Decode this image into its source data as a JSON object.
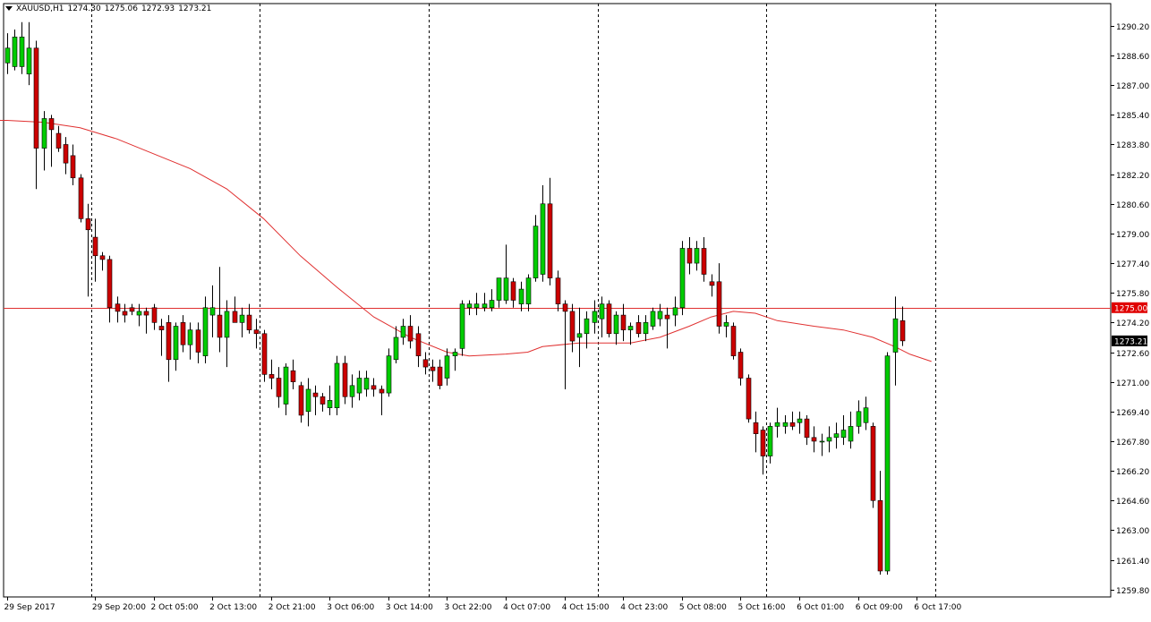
{
  "header": {
    "symbol": "XAUUSD,H1",
    "open": "1274.30",
    "high": "1275.06",
    "low": "1272.93",
    "close": "1273.21"
  },
  "colors": {
    "background": "#ffffff",
    "bull_candle": "#00cc00",
    "bear_candle": "#cc0000",
    "wick": "#000000",
    "moving_average": "#e03030",
    "horizontal_line": "#e03030",
    "price_badge_line": "#e00000",
    "price_badge_current": "#000000",
    "separator": "#000000"
  },
  "chart_data": {
    "type": "candlestick",
    "title": "XAUUSD,H1",
    "ylim": [
      1259.4,
      1291.4
    ],
    "y_ticks": [
      "1290.20",
      "1288.60",
      "1287.00",
      "1285.40",
      "1283.80",
      "1282.20",
      "1280.60",
      "1279.00",
      "1277.40",
      "1275.80",
      "1274.20",
      "1272.60",
      "1271.00",
      "1269.40",
      "1267.80",
      "1266.20",
      "1264.60",
      "1263.00",
      "1261.40",
      "1259.80"
    ],
    "x_ticks": [
      {
        "index": 0,
        "label": "29 Sep 2017"
      },
      {
        "index": 12,
        "label": "29 Sep 20:00"
      },
      {
        "index": 20,
        "label": "2 Oct 05:00"
      },
      {
        "index": 28,
        "label": "2 Oct 13:00"
      },
      {
        "index": 36,
        "label": "2 Oct 21:00"
      },
      {
        "index": 44,
        "label": "3 Oct 06:00"
      },
      {
        "index": 52,
        "label": "3 Oct 14:00"
      },
      {
        "index": 60,
        "label": "3 Oct 22:00"
      },
      {
        "index": 68,
        "label": "4 Oct 07:00"
      },
      {
        "index": 76,
        "label": "4 Oct 15:00"
      },
      {
        "index": 84,
        "label": "4 Oct 23:00"
      },
      {
        "index": 92,
        "label": "5 Oct 08:00"
      },
      {
        "index": 100,
        "label": "5 Oct 16:00"
      },
      {
        "index": 108,
        "label": "6 Oct 01:00"
      },
      {
        "index": 116,
        "label": "6 Oct 09:00"
      },
      {
        "index": 124,
        "label": "6 Oct 17:00"
      }
    ],
    "day_separators": [
      12,
      35,
      58,
      81,
      104,
      127
    ],
    "horizontal_line": {
      "value": 1275.0,
      "label": "1275.00"
    },
    "current_price": {
      "value": 1273.21,
      "label": "1273.21"
    },
    "candles": [
      {
        "o": 1288.2,
        "h": 1289.8,
        "l": 1287.6,
        "c": 1289.0
      },
      {
        "o": 1288.0,
        "h": 1290.0,
        "l": 1287.8,
        "c": 1289.6
      },
      {
        "o": 1288.0,
        "h": 1290.4,
        "l": 1287.6,
        "c": 1289.6
      },
      {
        "o": 1287.6,
        "h": 1290.4,
        "l": 1287.0,
        "c": 1289.0
      },
      {
        "o": 1289.0,
        "h": 1289.4,
        "l": 1281.4,
        "c": 1283.6
      },
      {
        "o": 1283.6,
        "h": 1285.6,
        "l": 1282.4,
        "c": 1285.2
      },
      {
        "o": 1285.2,
        "h": 1285.4,
        "l": 1282.6,
        "c": 1284.6
      },
      {
        "o": 1284.4,
        "h": 1284.8,
        "l": 1283.4,
        "c": 1283.6
      },
      {
        "o": 1283.8,
        "h": 1284.2,
        "l": 1282.2,
        "c": 1282.8
      },
      {
        "o": 1283.2,
        "h": 1283.8,
        "l": 1281.6,
        "c": 1282.0
      },
      {
        "o": 1282.0,
        "h": 1282.2,
        "l": 1279.6,
        "c": 1279.8
      },
      {
        "o": 1279.8,
        "h": 1280.6,
        "l": 1275.6,
        "c": 1279.2
      },
      {
        "o": 1278.8,
        "h": 1279.8,
        "l": 1276.4,
        "c": 1277.8
      },
      {
        "o": 1277.8,
        "h": 1278.0,
        "l": 1277.0,
        "c": 1277.6
      },
      {
        "o": 1277.6,
        "h": 1277.8,
        "l": 1274.2,
        "c": 1275.0
      },
      {
        "o": 1275.2,
        "h": 1275.6,
        "l": 1274.2,
        "c": 1274.8
      },
      {
        "o": 1274.8,
        "h": 1275.2,
        "l": 1274.2,
        "c": 1274.6
      },
      {
        "o": 1275.0,
        "h": 1275.2,
        "l": 1274.6,
        "c": 1274.8
      },
      {
        "o": 1274.6,
        "h": 1275.2,
        "l": 1274.0,
        "c": 1274.8
      },
      {
        "o": 1274.8,
        "h": 1275.0,
        "l": 1273.6,
        "c": 1274.6
      },
      {
        "o": 1275.0,
        "h": 1275.2,
        "l": 1273.8,
        "c": 1274.2
      },
      {
        "o": 1274.0,
        "h": 1274.4,
        "l": 1272.4,
        "c": 1273.8
      },
      {
        "o": 1274.2,
        "h": 1274.6,
        "l": 1271.0,
        "c": 1272.2
      },
      {
        "o": 1272.2,
        "h": 1274.2,
        "l": 1271.6,
        "c": 1274.0
      },
      {
        "o": 1274.2,
        "h": 1274.6,
        "l": 1272.6,
        "c": 1273.0
      },
      {
        "o": 1273.0,
        "h": 1274.2,
        "l": 1272.2,
        "c": 1273.8
      },
      {
        "o": 1273.8,
        "h": 1274.2,
        "l": 1272.0,
        "c": 1272.6
      },
      {
        "o": 1272.4,
        "h": 1275.6,
        "l": 1272.0,
        "c": 1275.0
      },
      {
        "o": 1274.6,
        "h": 1276.2,
        "l": 1273.4,
        "c": 1275.0
      },
      {
        "o": 1274.6,
        "h": 1277.2,
        "l": 1272.6,
        "c": 1273.4
      },
      {
        "o": 1273.4,
        "h": 1275.4,
        "l": 1271.8,
        "c": 1274.8
      },
      {
        "o": 1274.8,
        "h": 1275.6,
        "l": 1274.2,
        "c": 1274.2
      },
      {
        "o": 1274.2,
        "h": 1275.0,
        "l": 1273.4,
        "c": 1274.6
      },
      {
        "o": 1274.6,
        "h": 1275.2,
        "l": 1273.6,
        "c": 1273.8
      },
      {
        "o": 1273.8,
        "h": 1274.4,
        "l": 1272.8,
        "c": 1273.6
      },
      {
        "o": 1273.6,
        "h": 1273.8,
        "l": 1271.0,
        "c": 1271.4
      },
      {
        "o": 1271.4,
        "h": 1272.2,
        "l": 1270.6,
        "c": 1271.2
      },
      {
        "o": 1271.2,
        "h": 1271.8,
        "l": 1269.6,
        "c": 1270.2
      },
      {
        "o": 1269.8,
        "h": 1272.0,
        "l": 1269.2,
        "c": 1271.8
      },
      {
        "o": 1271.6,
        "h": 1272.2,
        "l": 1270.6,
        "c": 1271.0
      },
      {
        "o": 1270.8,
        "h": 1271.0,
        "l": 1268.8,
        "c": 1269.2
      },
      {
        "o": 1269.4,
        "h": 1271.2,
        "l": 1268.6,
        "c": 1270.6
      },
      {
        "o": 1270.4,
        "h": 1270.8,
        "l": 1269.2,
        "c": 1270.2
      },
      {
        "o": 1270.2,
        "h": 1270.4,
        "l": 1269.4,
        "c": 1269.8
      },
      {
        "o": 1269.6,
        "h": 1270.8,
        "l": 1269.2,
        "c": 1270.0
      },
      {
        "o": 1269.6,
        "h": 1272.4,
        "l": 1269.2,
        "c": 1272.0
      },
      {
        "o": 1272.0,
        "h": 1272.4,
        "l": 1269.8,
        "c": 1270.2
      },
      {
        "o": 1270.2,
        "h": 1271.4,
        "l": 1269.6,
        "c": 1270.8
      },
      {
        "o": 1270.4,
        "h": 1271.6,
        "l": 1270.0,
        "c": 1271.2
      },
      {
        "o": 1270.6,
        "h": 1271.6,
        "l": 1270.2,
        "c": 1271.2
      },
      {
        "o": 1270.8,
        "h": 1271.2,
        "l": 1270.2,
        "c": 1270.6
      },
      {
        "o": 1270.6,
        "h": 1270.8,
        "l": 1269.2,
        "c": 1270.4
      },
      {
        "o": 1270.4,
        "h": 1272.8,
        "l": 1270.2,
        "c": 1272.4
      },
      {
        "o": 1272.2,
        "h": 1274.0,
        "l": 1272.0,
        "c": 1273.4
      },
      {
        "o": 1273.4,
        "h": 1274.4,
        "l": 1273.0,
        "c": 1274.0
      },
      {
        "o": 1274.0,
        "h": 1274.6,
        "l": 1272.8,
        "c": 1273.2
      },
      {
        "o": 1273.6,
        "h": 1274.0,
        "l": 1271.8,
        "c": 1272.4
      },
      {
        "o": 1272.2,
        "h": 1272.6,
        "l": 1271.4,
        "c": 1271.8
      },
      {
        "o": 1271.8,
        "h": 1272.2,
        "l": 1271.0,
        "c": 1271.6
      },
      {
        "o": 1271.8,
        "h": 1272.2,
        "l": 1270.6,
        "c": 1270.8
      },
      {
        "o": 1271.2,
        "h": 1272.8,
        "l": 1270.8,
        "c": 1272.4
      },
      {
        "o": 1272.4,
        "h": 1272.8,
        "l": 1271.6,
        "c": 1272.6
      },
      {
        "o": 1272.8,
        "h": 1275.4,
        "l": 1272.4,
        "c": 1275.2
      },
      {
        "o": 1275.0,
        "h": 1275.4,
        "l": 1274.6,
        "c": 1275.2
      },
      {
        "o": 1275.0,
        "h": 1275.8,
        "l": 1274.6,
        "c": 1275.2
      },
      {
        "o": 1275.0,
        "h": 1275.8,
        "l": 1274.8,
        "c": 1275.2
      },
      {
        "o": 1275.0,
        "h": 1276.0,
        "l": 1274.8,
        "c": 1275.4
      },
      {
        "o": 1275.4,
        "h": 1276.6,
        "l": 1275.0,
        "c": 1276.6
      },
      {
        "o": 1275.4,
        "h": 1278.4,
        "l": 1275.2,
        "c": 1276.6
      },
      {
        "o": 1276.4,
        "h": 1276.6,
        "l": 1275.0,
        "c": 1275.4
      },
      {
        "o": 1275.2,
        "h": 1276.4,
        "l": 1274.8,
        "c": 1276.0
      },
      {
        "o": 1275.2,
        "h": 1276.8,
        "l": 1274.8,
        "c": 1276.6
      },
      {
        "o": 1276.6,
        "h": 1280.0,
        "l": 1276.4,
        "c": 1279.4
      },
      {
        "o": 1276.8,
        "h": 1281.6,
        "l": 1276.4,
        "c": 1280.6
      },
      {
        "o": 1280.6,
        "h": 1282.0,
        "l": 1276.2,
        "c": 1276.6
      },
      {
        "o": 1276.6,
        "h": 1277.0,
        "l": 1274.8,
        "c": 1275.2
      },
      {
        "o": 1275.2,
        "h": 1275.4,
        "l": 1270.6,
        "c": 1274.8
      },
      {
        "o": 1274.8,
        "h": 1275.2,
        "l": 1272.6,
        "c": 1273.2
      },
      {
        "o": 1273.4,
        "h": 1275.0,
        "l": 1271.8,
        "c": 1273.6
      },
      {
        "o": 1273.6,
        "h": 1274.8,
        "l": 1272.8,
        "c": 1274.4
      },
      {
        "o": 1274.2,
        "h": 1275.4,
        "l": 1273.6,
        "c": 1274.8
      },
      {
        "o": 1274.4,
        "h": 1275.6,
        "l": 1273.4,
        "c": 1275.2
      },
      {
        "o": 1275.2,
        "h": 1275.4,
        "l": 1273.4,
        "c": 1273.6
      },
      {
        "o": 1273.6,
        "h": 1274.8,
        "l": 1273.0,
        "c": 1274.6
      },
      {
        "o": 1274.6,
        "h": 1275.2,
        "l": 1273.2,
        "c": 1273.8
      },
      {
        "o": 1273.8,
        "h": 1274.2,
        "l": 1273.0,
        "c": 1274.0
      },
      {
        "o": 1274.2,
        "h": 1274.6,
        "l": 1273.4,
        "c": 1273.6
      },
      {
        "o": 1273.6,
        "h": 1274.6,
        "l": 1273.2,
        "c": 1274.2
      },
      {
        "o": 1274.0,
        "h": 1275.0,
        "l": 1273.8,
        "c": 1274.8
      },
      {
        "o": 1274.4,
        "h": 1275.2,
        "l": 1274.0,
        "c": 1274.8
      },
      {
        "o": 1274.6,
        "h": 1275.0,
        "l": 1272.8,
        "c": 1274.4
      },
      {
        "o": 1274.6,
        "h": 1275.6,
        "l": 1274.0,
        "c": 1275.0
      },
      {
        "o": 1275.0,
        "h": 1278.6,
        "l": 1274.6,
        "c": 1278.2
      },
      {
        "o": 1278.2,
        "h": 1278.8,
        "l": 1276.8,
        "c": 1277.4
      },
      {
        "o": 1277.4,
        "h": 1278.6,
        "l": 1277.0,
        "c": 1278.2
      },
      {
        "o": 1278.2,
        "h": 1278.8,
        "l": 1276.4,
        "c": 1276.8
      },
      {
        "o": 1276.4,
        "h": 1276.8,
        "l": 1275.6,
        "c": 1276.2
      },
      {
        "o": 1276.4,
        "h": 1277.4,
        "l": 1273.6,
        "c": 1274.0
      },
      {
        "o": 1274.0,
        "h": 1274.6,
        "l": 1273.4,
        "c": 1274.2
      },
      {
        "o": 1274.0,
        "h": 1274.2,
        "l": 1272.2,
        "c": 1272.4
      },
      {
        "o": 1272.6,
        "h": 1272.8,
        "l": 1270.8,
        "c": 1271.2
      },
      {
        "o": 1271.2,
        "h": 1271.4,
        "l": 1268.8,
        "c": 1269.0
      },
      {
        "o": 1268.8,
        "h": 1269.4,
        "l": 1267.2,
        "c": 1268.2
      },
      {
        "o": 1268.4,
        "h": 1268.6,
        "l": 1266.0,
        "c": 1267.0
      },
      {
        "o": 1267.0,
        "h": 1268.8,
        "l": 1266.6,
        "c": 1268.6
      },
      {
        "o": 1268.6,
        "h": 1269.6,
        "l": 1268.0,
        "c": 1268.8
      },
      {
        "o": 1268.6,
        "h": 1269.2,
        "l": 1268.2,
        "c": 1268.8
      },
      {
        "o": 1268.8,
        "h": 1269.4,
        "l": 1268.4,
        "c": 1268.6
      },
      {
        "o": 1268.8,
        "h": 1269.4,
        "l": 1268.2,
        "c": 1269.0
      },
      {
        "o": 1269.0,
        "h": 1269.2,
        "l": 1267.6,
        "c": 1268.0
      },
      {
        "o": 1268.0,
        "h": 1268.6,
        "l": 1267.2,
        "c": 1267.8
      },
      {
        "o": 1267.8,
        "h": 1268.2,
        "l": 1267.0,
        "c": 1267.8
      },
      {
        "o": 1267.8,
        "h": 1268.6,
        "l": 1267.2,
        "c": 1268.0
      },
      {
        "o": 1268.0,
        "h": 1268.8,
        "l": 1267.4,
        "c": 1268.2
      },
      {
        "o": 1268.0,
        "h": 1269.2,
        "l": 1267.6,
        "c": 1268.4
      },
      {
        "o": 1267.8,
        "h": 1269.4,
        "l": 1267.4,
        "c": 1268.6
      },
      {
        "o": 1268.6,
        "h": 1270.0,
        "l": 1268.2,
        "c": 1269.4
      },
      {
        "o": 1268.8,
        "h": 1270.2,
        "l": 1268.4,
        "c": 1269.6
      },
      {
        "o": 1268.6,
        "h": 1268.8,
        "l": 1264.2,
        "c": 1264.6
      },
      {
        "o": 1264.6,
        "h": 1266.2,
        "l": 1260.6,
        "c": 1260.8
      },
      {
        "o": 1260.8,
        "h": 1272.6,
        "l": 1260.6,
        "c": 1272.4
      },
      {
        "o": 1272.6,
        "h": 1275.6,
        "l": 1270.8,
        "c": 1274.4
      },
      {
        "o": 1274.3,
        "h": 1275.06,
        "l": 1272.93,
        "c": 1273.21
      }
    ],
    "moving_average": [
      {
        "x": -1,
        "y": 1285.1
      },
      {
        "x": 0,
        "y": 1285.1
      },
      {
        "x": 5,
        "y": 1285.0
      },
      {
        "x": 10,
        "y": 1284.7
      },
      {
        "x": 15,
        "y": 1284.1
      },
      {
        "x": 20,
        "y": 1283.3
      },
      {
        "x": 25,
        "y": 1282.5
      },
      {
        "x": 30,
        "y": 1281.4
      },
      {
        "x": 35,
        "y": 1279.8
      },
      {
        "x": 40,
        "y": 1277.8
      },
      {
        "x": 45,
        "y": 1276.1
      },
      {
        "x": 50,
        "y": 1274.5
      },
      {
        "x": 55,
        "y": 1273.4
      },
      {
        "x": 60,
        "y": 1272.6
      },
      {
        "x": 63,
        "y": 1272.4
      },
      {
        "x": 68,
        "y": 1272.5
      },
      {
        "x": 71,
        "y": 1272.6
      },
      {
        "x": 73,
        "y": 1272.9
      },
      {
        "x": 78,
        "y": 1273.1
      },
      {
        "x": 85,
        "y": 1273.1
      },
      {
        "x": 89,
        "y": 1273.4
      },
      {
        "x": 93,
        "y": 1274.0
      },
      {
        "x": 96,
        "y": 1274.5
      },
      {
        "x": 99,
        "y": 1274.8
      },
      {
        "x": 102,
        "y": 1274.7
      },
      {
        "x": 105,
        "y": 1274.3
      },
      {
        "x": 110,
        "y": 1274.0
      },
      {
        "x": 114,
        "y": 1273.8
      },
      {
        "x": 118,
        "y": 1273.4
      },
      {
        "x": 121,
        "y": 1272.9
      },
      {
        "x": 123,
        "y": 1272.5
      },
      {
        "x": 126,
        "y": 1272.1
      }
    ]
  }
}
